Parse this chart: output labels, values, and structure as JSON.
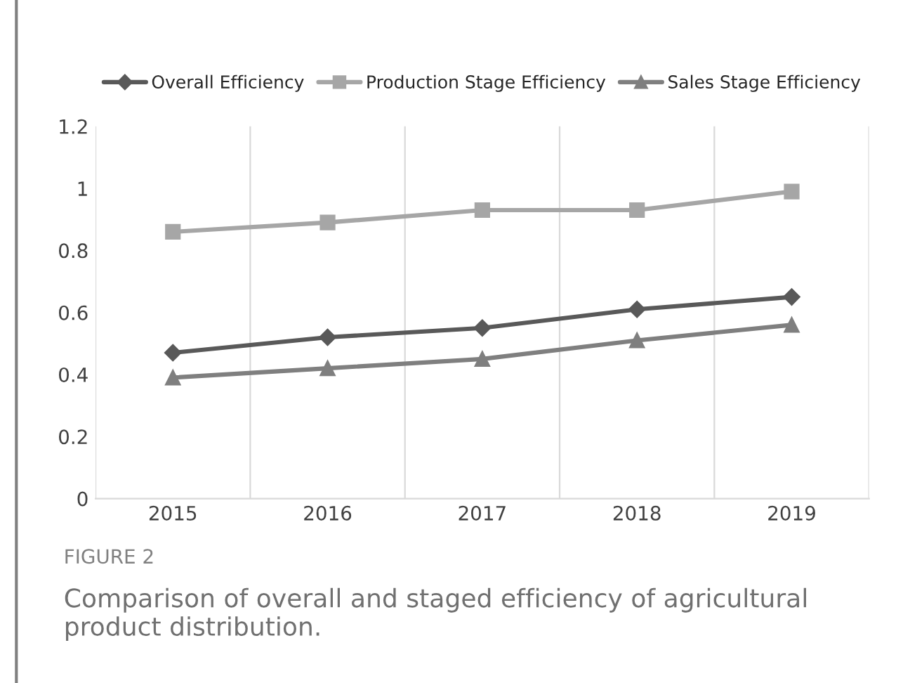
{
  "chart_data": {
    "type": "line",
    "categories": [
      "2015",
      "2016",
      "2017",
      "2018",
      "2019"
    ],
    "series": [
      {
        "name": "Overall Efficiency",
        "color": "#595959",
        "marker": "diamond",
        "values": [
          0.47,
          0.52,
          0.55,
          0.61,
          0.65
        ]
      },
      {
        "name": "Production Stage Efficiency",
        "color": "#a6a6a6",
        "marker": "square",
        "values": [
          0.86,
          0.89,
          0.93,
          0.93,
          0.99
        ]
      },
      {
        "name": "Sales Stage Efficiency",
        "color": "#7f7f7f",
        "marker": "triangle",
        "values": [
          0.39,
          0.42,
          0.45,
          0.51,
          0.56
        ]
      }
    ],
    "ylim": [
      0,
      1.2
    ],
    "yticks": [
      0,
      0.2,
      0.4,
      0.6,
      0.8,
      1,
      1.2
    ],
    "grid": "x",
    "legend": "top",
    "line_style": "solid",
    "annotations": [
      "FIGURE 2",
      "Comparison of overall and staged efficiency of agricultural product distribution."
    ]
  }
}
